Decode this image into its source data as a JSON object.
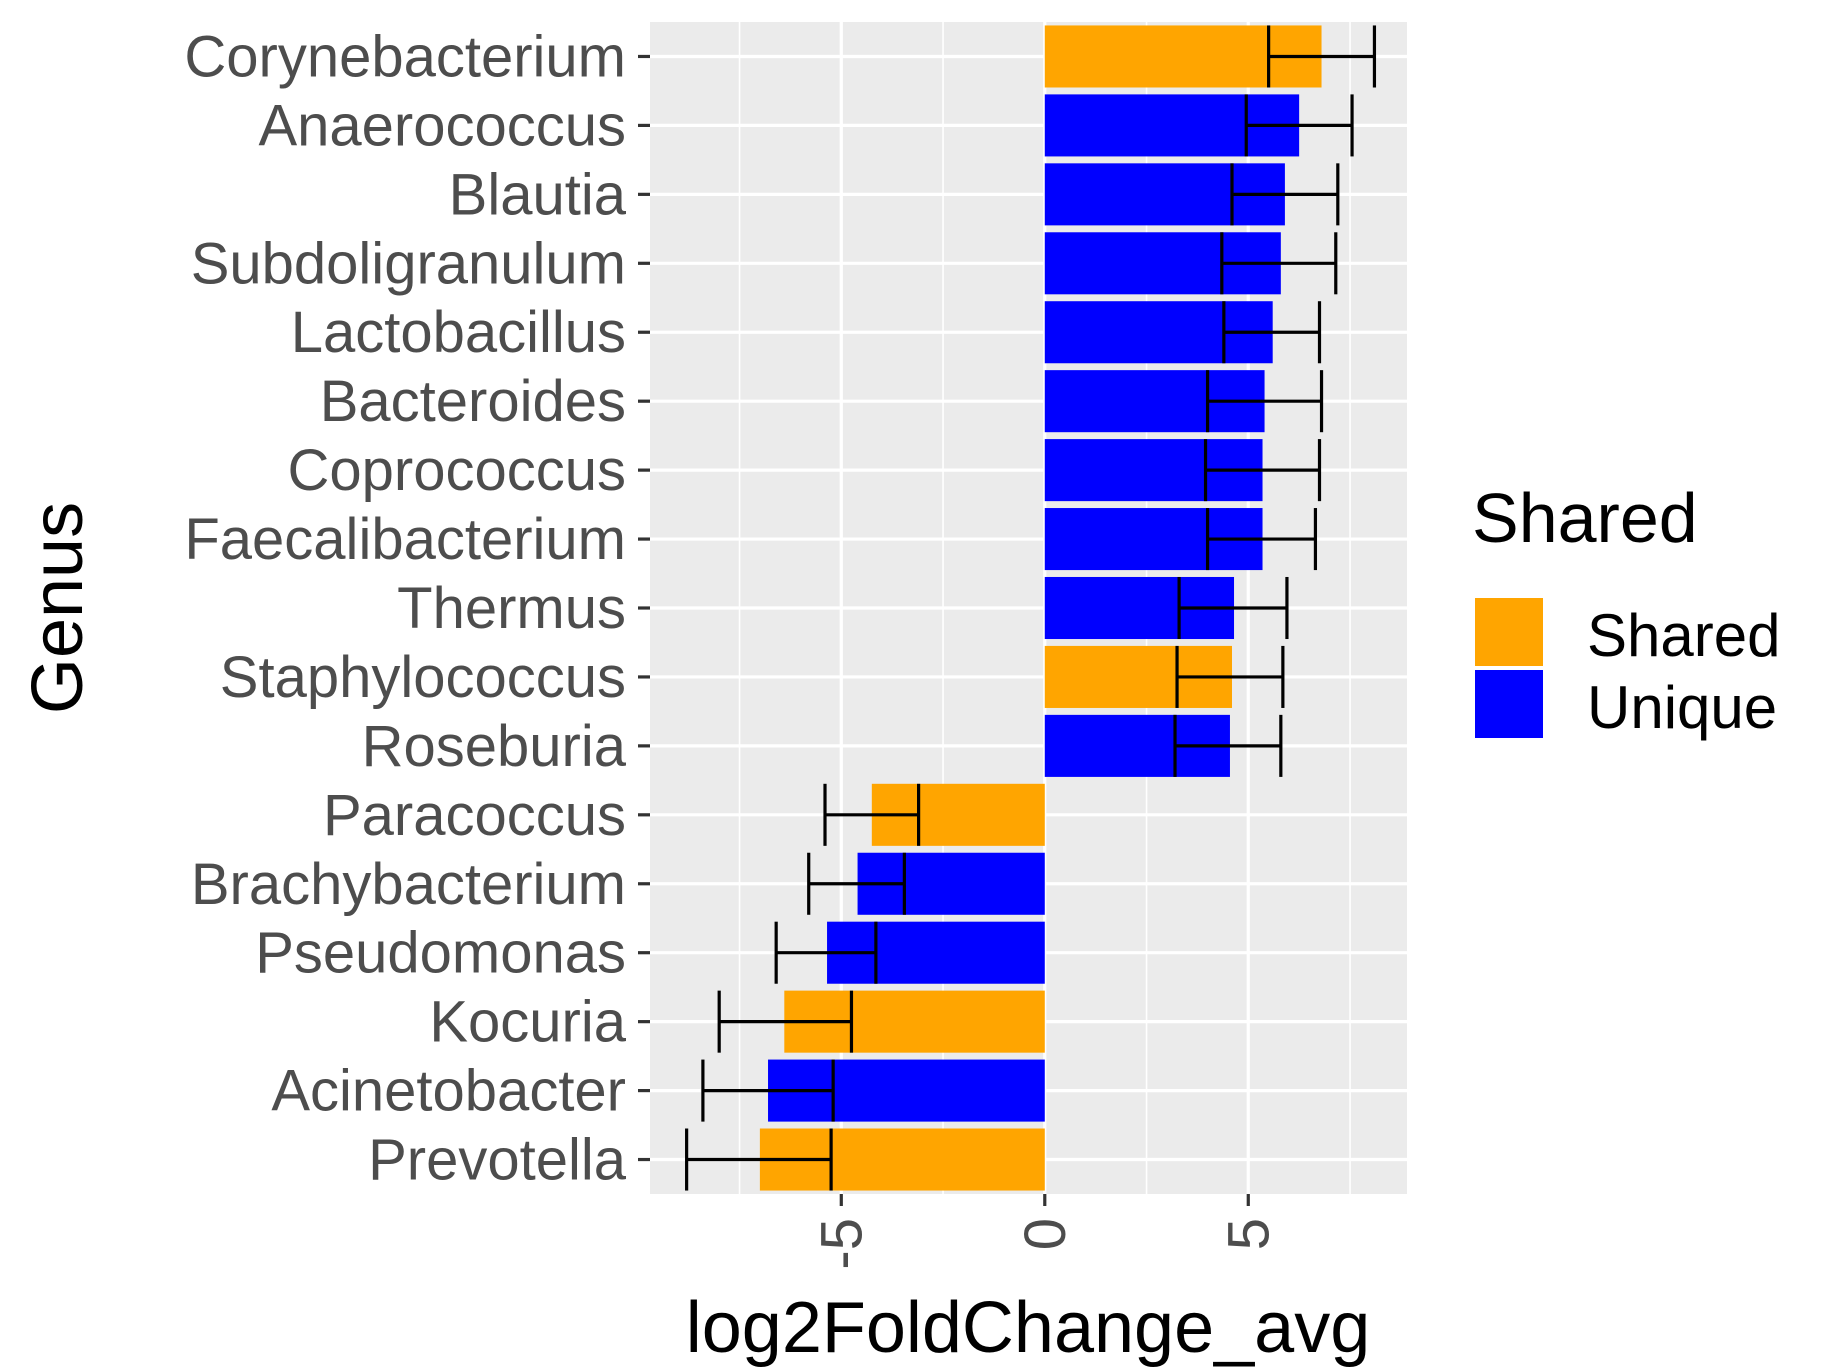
{
  "chart_data": {
    "type": "bar",
    "orientation": "horizontal",
    "xlabel": "log2FoldChange_avg",
    "ylabel": "Genus",
    "xlim": [
      -9.7,
      8.9
    ],
    "x_ticks": [
      -5,
      0,
      5
    ],
    "x_tick_labels": [
      "-5",
      "0",
      "5"
    ],
    "grid": true,
    "legend": {
      "title": "Shared",
      "position": "right",
      "entries": [
        {
          "label": "Shared",
          "color": "#FFA500"
        },
        {
          "label": "Unique",
          "color": "#0000FF"
        }
      ]
    },
    "categories": [
      "Corynebacterium",
      "Anaerococcus",
      "Blautia",
      "Subdoligranulum",
      "Lactobacillus",
      "Bacteroides",
      "Coprococcus",
      "Faecalibacterium",
      "Thermus",
      "Staphylococcus",
      "Roseburia",
      "Paracoccus",
      "Brachybacterium",
      "Pseudomonas",
      "Kocuria",
      "Acinetobacter",
      "Prevotella"
    ],
    "values": [
      6.8,
      6.25,
      5.9,
      5.8,
      5.6,
      5.4,
      5.35,
      5.35,
      4.65,
      4.6,
      4.55,
      -4.25,
      -4.6,
      -5.35,
      -6.4,
      -6.8,
      -7.0
    ],
    "group": [
      "Shared",
      "Unique",
      "Unique",
      "Unique",
      "Unique",
      "Unique",
      "Unique",
      "Unique",
      "Unique",
      "Shared",
      "Unique",
      "Shared",
      "Unique",
      "Unique",
      "Shared",
      "Unique",
      "Shared"
    ],
    "error_lower": [
      5.5,
      4.95,
      4.6,
      4.35,
      4.4,
      4.0,
      3.95,
      4.0,
      3.3,
      3.25,
      3.2,
      -5.4,
      -5.8,
      -6.6,
      -8.0,
      -8.4,
      -8.8
    ],
    "error_upper": [
      8.1,
      7.55,
      7.2,
      7.15,
      6.75,
      6.8,
      6.75,
      6.65,
      5.95,
      5.85,
      5.8,
      -3.1,
      -3.45,
      -4.15,
      -4.75,
      -5.2,
      -5.25
    ]
  }
}
